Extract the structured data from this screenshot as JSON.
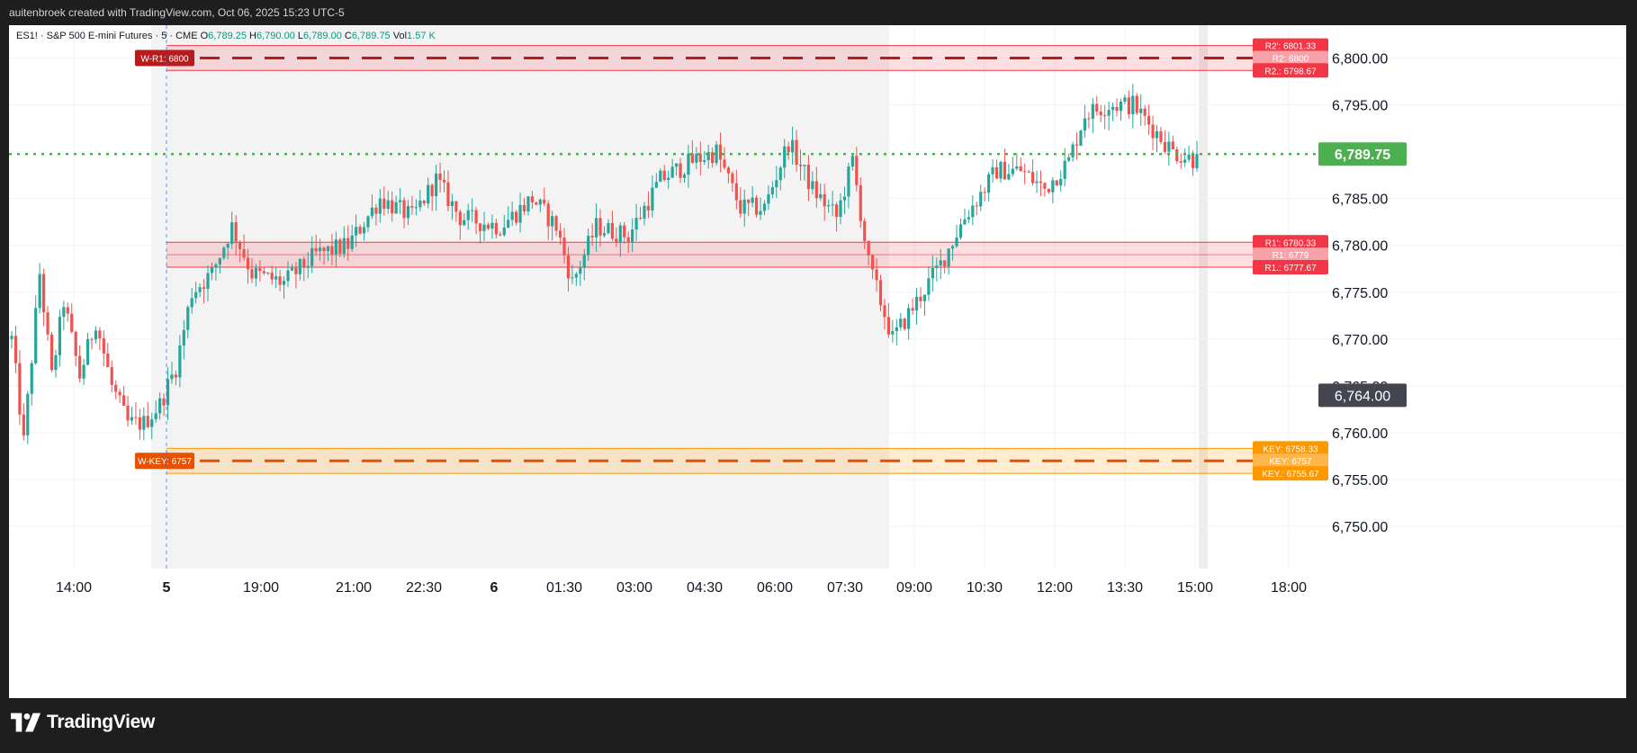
{
  "header": {
    "attribution": "auitenbroek created with TradingView.com, Oct 06, 2025 15:23 UTC-5"
  },
  "legend": {
    "symbol": "ES1! · S&P 500 E-mini Futures · 5 · CME",
    "open_label": "O",
    "open": "6,789.25",
    "high_label": "H",
    "high": "6,790.00",
    "low_label": "L",
    "low": "6,789.00",
    "close_label": "C",
    "close": "6,789.75",
    "vol_label": "Vol",
    "vol": "1.57 K"
  },
  "brand": {
    "name": "TradingView"
  },
  "colors": {
    "up": "#26a69a",
    "down": "#ef5350",
    "page_bg": "#1e1e1e",
    "resistance": "#f23645",
    "key": "#ff9800",
    "price_line": "#4caf50"
  },
  "chart_data": {
    "type": "candlestick",
    "ylim": [
      6745.5,
      6803.5
    ],
    "y_ticks": [
      {
        "value": 6800,
        "label": "6,800.00"
      },
      {
        "value": 6795,
        "label": "6,795.00"
      },
      {
        "value": 6785,
        "label": "6,785.00"
      },
      {
        "value": 6780,
        "label": "6,780.00"
      },
      {
        "value": 6775,
        "label": "6,775.00"
      },
      {
        "value": 6770,
        "label": "6,770.00"
      },
      {
        "value": 6765,
        "label": "6,765.00"
      },
      {
        "value": 6760,
        "label": "6,760.00"
      },
      {
        "value": 6755,
        "label": "6,755.00"
      },
      {
        "value": 6750,
        "label": "6,750.00"
      }
    ],
    "x_ticks": [
      {
        "label": "14:00",
        "bold": false
      },
      {
        "label": "5",
        "bold": true
      },
      {
        "label": "19:00",
        "bold": false
      },
      {
        "label": "21:00",
        "bold": false
      },
      {
        "label": "22:30",
        "bold": false
      },
      {
        "label": "6",
        "bold": true
      },
      {
        "label": "01:30",
        "bold": false
      },
      {
        "label": "03:00",
        "bold": false
      },
      {
        "label": "04:30",
        "bold": false
      },
      {
        "label": "06:00",
        "bold": false
      },
      {
        "label": "07:30",
        "bold": false
      },
      {
        "label": "09:00",
        "bold": false
      },
      {
        "label": "10:30",
        "bold": false
      },
      {
        "label": "12:00",
        "bold": false
      },
      {
        "label": "13:30",
        "bold": false
      },
      {
        "label": "15:00",
        "bold": false
      },
      {
        "label": "18:00",
        "bold": false
      }
    ],
    "last_price": {
      "value": 6789.75,
      "label": "6,789.75"
    },
    "cursor_price": {
      "value": 6764.0,
      "label": "6,764.00"
    },
    "zones": [
      {
        "name": "R2",
        "top": 6801.33,
        "mid": 6800,
        "bottom": 6798.67,
        "top_label": "R2': 6801.33",
        "mid_label": "R2: 6800",
        "bottom_label": "R2.: 6798.67",
        "weekly_label": "W-R1: 6800"
      },
      {
        "name": "R1",
        "top": 6780.33,
        "mid": 6779,
        "bottom": 6777.67,
        "top_label": "R1': 6780.33",
        "mid_label": "R1: 6779",
        "bottom_label": "R1.: 6777.67",
        "weekly_label": ""
      },
      {
        "name": "KEY",
        "top": 6758.33,
        "mid": 6757,
        "bottom": 6755.67,
        "top_label": "KEY: 6758.33",
        "mid_label": "KEY: 6757",
        "bottom_label": "KEY.: 6755.67",
        "weekly_label": "W-KEY: 6757"
      }
    ],
    "anchors": [
      {
        "t": 0,
        "v": 6770
      },
      {
        "t": 3,
        "v": 6759
      },
      {
        "t": 7,
        "v": 6777
      },
      {
        "t": 10,
        "v": 6766
      },
      {
        "t": 13,
        "v": 6774
      },
      {
        "t": 17,
        "v": 6766
      },
      {
        "t": 21,
        "v": 6772
      },
      {
        "t": 25,
        "v": 6765
      },
      {
        "t": 29,
        "v": 6761
      },
      {
        "t": 33,
        "v": 6761
      },
      {
        "t": 37,
        "v": 6763
      },
      {
        "t": 41,
        "v": 6767
      },
      {
        "t": 45,
        "v": 6775
      },
      {
        "t": 50,
        "v": 6777
      },
      {
        "t": 55,
        "v": 6782
      },
      {
        "t": 60,
        "v": 6777
      },
      {
        "t": 68,
        "v": 6776
      },
      {
        "t": 76,
        "v": 6779
      },
      {
        "t": 84,
        "v": 6780
      },
      {
        "t": 92,
        "v": 6785
      },
      {
        "t": 100,
        "v": 6783
      },
      {
        "t": 106,
        "v": 6787
      },
      {
        "t": 112,
        "v": 6783
      },
      {
        "t": 122,
        "v": 6782
      },
      {
        "t": 130,
        "v": 6785
      },
      {
        "t": 136,
        "v": 6782
      },
      {
        "t": 140,
        "v": 6776
      },
      {
        "t": 146,
        "v": 6782
      },
      {
        "t": 154,
        "v": 6781
      },
      {
        "t": 162,
        "v": 6787
      },
      {
        "t": 170,
        "v": 6789
      },
      {
        "t": 176,
        "v": 6790
      },
      {
        "t": 182,
        "v": 6784
      },
      {
        "t": 188,
        "v": 6784
      },
      {
        "t": 194,
        "v": 6791
      },
      {
        "t": 200,
        "v": 6786
      },
      {
        "t": 206,
        "v": 6783
      },
      {
        "t": 210,
        "v": 6789
      },
      {
        "t": 214,
        "v": 6778
      },
      {
        "t": 220,
        "v": 6770
      },
      {
        "t": 226,
        "v": 6774
      },
      {
        "t": 232,
        "v": 6778
      },
      {
        "t": 238,
        "v": 6783
      },
      {
        "t": 246,
        "v": 6788
      },
      {
        "t": 252,
        "v": 6788
      },
      {
        "t": 258,
        "v": 6786
      },
      {
        "t": 264,
        "v": 6789
      },
      {
        "t": 268,
        "v": 6794
      },
      {
        "t": 274,
        "v": 6795
      },
      {
        "t": 280,
        "v": 6795
      },
      {
        "t": 286,
        "v": 6792
      },
      {
        "t": 290,
        "v": 6790
      },
      {
        "t": 296,
        "v": 6789
      }
    ]
  }
}
